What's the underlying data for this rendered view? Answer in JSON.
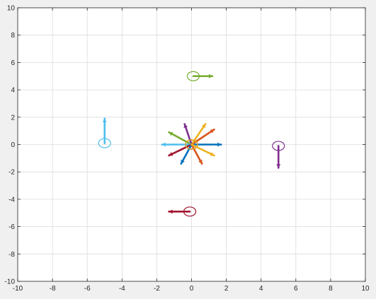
{
  "chart_data": {
    "type": "scatter",
    "title": "",
    "xlabel": "",
    "ylabel": "",
    "xlim": [
      -10,
      10
    ],
    "ylim": [
      -10,
      10
    ],
    "grid": true,
    "xticks": [
      -10,
      -8,
      -6,
      -4,
      -2,
      0,
      2,
      4,
      6,
      8,
      10
    ],
    "yticks": [
      -10,
      -8,
      -6,
      -4,
      -2,
      0,
      2,
      4,
      6,
      8,
      10
    ],
    "xtick_labels": [
      "-10",
      "-8",
      "-6",
      "-4",
      "-2",
      "0",
      "2",
      "4",
      "6",
      "8",
      "10"
    ],
    "ytick_labels": [
      "-10",
      "-8",
      "-6",
      "-4",
      "-2",
      "0",
      "2",
      "4",
      "6",
      "8",
      "10"
    ],
    "markers": [
      {
        "x": 0.1,
        "y": 5.0,
        "u": 1.1,
        "v": 0.0,
        "color": "#77ac30"
      },
      {
        "x": -5.0,
        "y": 0.1,
        "u": 0.0,
        "v": 1.8,
        "color": "#4dbeee"
      },
      {
        "x": 5.0,
        "y": -0.1,
        "u": 0.0,
        "v": -1.6,
        "color": "#7e2f8e"
      },
      {
        "x": -0.1,
        "y": -4.9,
        "u": -1.2,
        "v": 0.0,
        "color": "#a2142f"
      },
      {
        "x": 0.0,
        "y": 0.0,
        "u": 1.7,
        "v": 0.0,
        "color": "#0072bd"
      },
      {
        "x": 0.0,
        "y": 0.0,
        "u": 1.3,
        "v": 1.1,
        "color": "#d95319"
      },
      {
        "x": 0.0,
        "y": 0.0,
        "u": 0.8,
        "v": 1.5,
        "color": "#edb120"
      },
      {
        "x": 0.0,
        "y": 0.0,
        "u": -0.4,
        "v": 1.5,
        "color": "#7e2f8e"
      },
      {
        "x": 0.0,
        "y": 0.0,
        "u": -1.3,
        "v": 0.9,
        "color": "#77ac30"
      },
      {
        "x": 0.0,
        "y": 0.0,
        "u": -1.7,
        "v": 0.0,
        "color": "#4dbeee"
      },
      {
        "x": 0.0,
        "y": 0.0,
        "u": -1.3,
        "v": -0.8,
        "color": "#a2142f"
      },
      {
        "x": 0.0,
        "y": 0.0,
        "u": -0.6,
        "v": -1.4,
        "color": "#0072bd"
      },
      {
        "x": 0.0,
        "y": 0.0,
        "u": 0.6,
        "v": -1.4,
        "color": "#d95319"
      },
      {
        "x": 0.0,
        "y": 0.0,
        "u": 1.3,
        "v": -0.8,
        "color": "#edb120"
      }
    ]
  }
}
